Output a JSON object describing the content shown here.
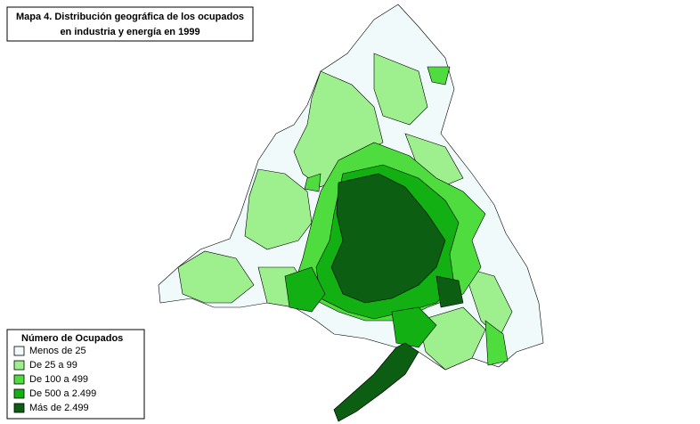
{
  "title": {
    "line1": "Mapa 4. Distribución geográfica de los ocupados",
    "line2": "en industria y energía en 1999"
  },
  "legend": {
    "title": "Número de Ocupados",
    "items": [
      {
        "label": "Menos de 25",
        "color": "#f0fafa"
      },
      {
        "label": "De 25 a 99",
        "color": "#9ef08e"
      },
      {
        "label": "De 100 a 499",
        "color": "#4fdc3e"
      },
      {
        "label": "De 500 a 2.499",
        "color": "#12b012"
      },
      {
        "label": "Más de 2.499",
        "color": "#0b5e12"
      }
    ]
  }
}
